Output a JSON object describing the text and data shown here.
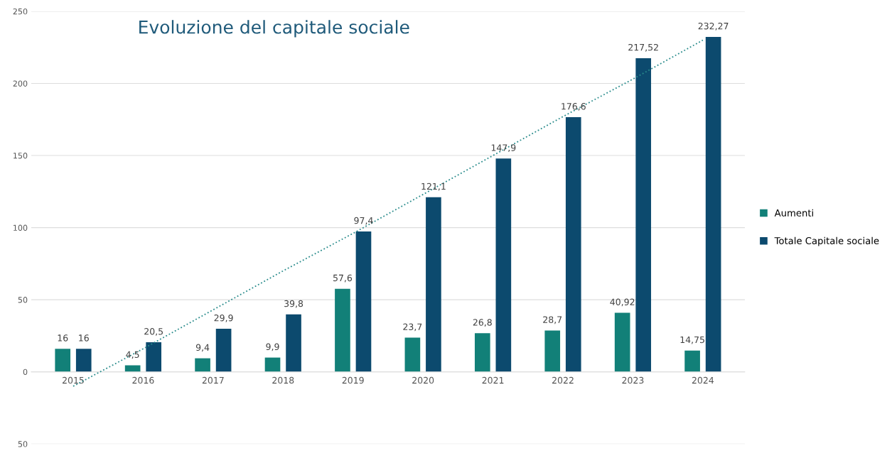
{
  "chart_data": {
    "type": "bar",
    "title": "Evoluzione del capitale sociale",
    "categories": [
      "2015",
      "2016",
      "2017",
      "2018",
      "2019",
      "2020",
      "2021",
      "2022",
      "2023",
      "2024"
    ],
    "series": [
      {
        "name": "Aumenti",
        "color": "#128078",
        "values": [
          16,
          4.5,
          9.4,
          9.9,
          57.6,
          23.7,
          26.8,
          28.7,
          40.92,
          14.75
        ],
        "value_labels": [
          "16",
          "4,5",
          "9,4",
          "9,9",
          "57,6",
          "23,7",
          "26,8",
          "28,7",
          "40,92",
          "14,75"
        ]
      },
      {
        "name": "Totale Capitale sociale",
        "color": "#0c4a6e",
        "values": [
          16,
          20.5,
          29.9,
          39.8,
          97.4,
          121.1,
          147.9,
          176.6,
          217.52,
          232.27
        ],
        "value_labels": [
          "16",
          "20,5",
          "29,9",
          "39,8",
          "97,4",
          "121,1",
          "147,9",
          "176,6",
          "217,52",
          "232,27"
        ]
      },
      {
        "type": "line",
        "color": "#2a8c8c",
        "values": [
          -10,
          16,
          43,
          70,
          96,
          123,
          150,
          177,
          203,
          230
        ],
        "line_style": "dotted",
        "marker": "none"
      }
    ],
    "ylim": [
      -50,
      250
    ],
    "yticks": [
      {
        "value": -50,
        "label": "50"
      },
      0,
      50,
      100,
      150,
      200,
      250
    ],
    "grid": "y",
    "legend": "right"
  }
}
